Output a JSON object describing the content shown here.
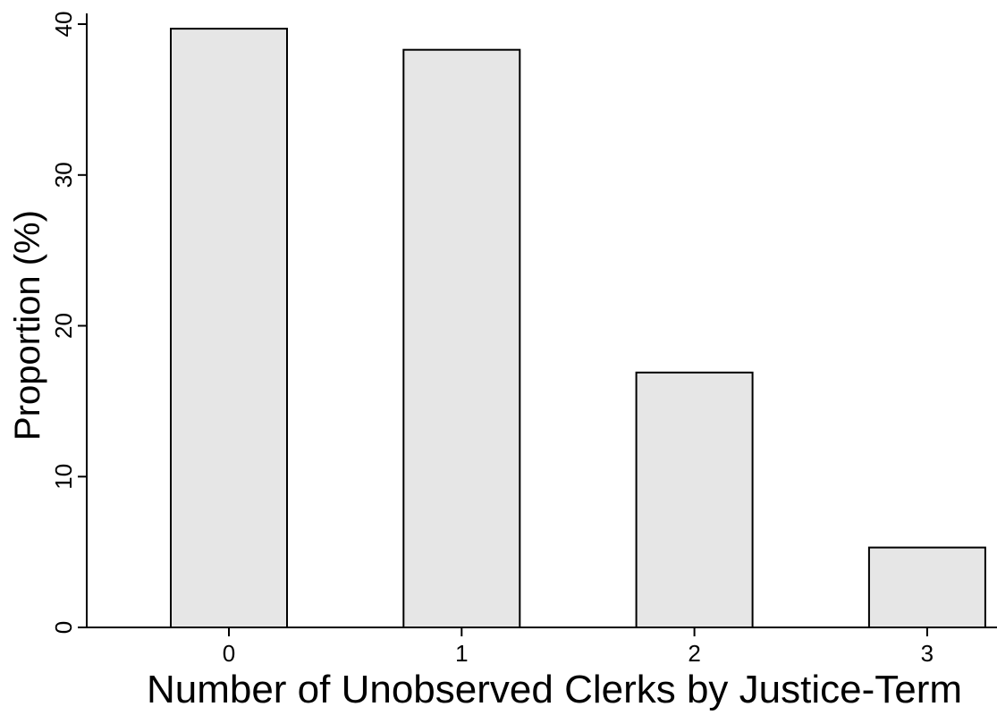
{
  "chart_data": {
    "type": "bar",
    "title": "",
    "xlabel": "Number of Unobserved Clerks by Justice-Term",
    "ylabel": "Proportion (%)",
    "categories": [
      "0",
      "1",
      "2",
      "3"
    ],
    "values": [
      39.7,
      38.3,
      16.9,
      5.3
    ],
    "ylim": [
      0,
      40
    ],
    "yticks": [
      "0",
      "10",
      "20",
      "30",
      "40"
    ],
    "grid": false,
    "colors": {
      "bar_fill": "#e6e6e6",
      "bar_stroke": "#000000",
      "axis": "#000000",
      "background": "#ffffff"
    }
  }
}
